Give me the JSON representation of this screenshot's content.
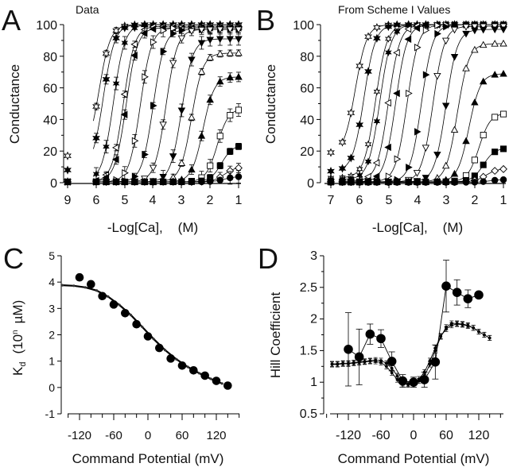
{
  "chart_data": [
    {
      "panel": "A",
      "type": "line",
      "title": "Data",
      "xlabel": "-Log[Ca],    (M)",
      "ylabel": "Conductance",
      "xticks": [
        "9",
        "6",
        "5",
        "4",
        "3",
        "2",
        "1"
      ],
      "yticks": [
        "0",
        "20",
        "40",
        "60",
        "80",
        "100"
      ],
      "ylim": [
        0,
        100
      ],
      "x_axis_note": "x axis reversed; broken between 9 and 6",
      "legend": "none",
      "series": [
        {
          "name": "s1",
          "marker": "open-star",
          "plateau_low": 17,
          "plateau_high": 100,
          "half": 5.9
        },
        {
          "name": "s2",
          "marker": "filled-star",
          "plateau_low": 8,
          "plateau_high": 100,
          "half": 5.75
        },
        {
          "name": "s3",
          "marker": "filled-star-small",
          "plateau_low": 1,
          "plateau_high": 100,
          "half": 5.4
        },
        {
          "name": "s4",
          "marker": "open-left-triangle",
          "plateau_low": 0.5,
          "plateau_high": 99,
          "half": 5.05
        },
        {
          "name": "s5",
          "marker": "filled-left-triangle",
          "plateau_low": 0.5,
          "plateau_high": 98,
          "half": 4.95
        },
        {
          "name": "s6",
          "marker": "open-right-triangle",
          "plateau_low": 0.5,
          "plateau_high": 98,
          "half": 4.45
        },
        {
          "name": "s7",
          "marker": "filled-right-triangle",
          "plateau_low": 0.5,
          "plateau_high": 97,
          "half": 4.0
        },
        {
          "name": "s8",
          "marker": "open-down-triangle",
          "plateau_low": 0.5,
          "plateau_high": 97,
          "half": 3.55
        },
        {
          "name": "s9",
          "marker": "filled-down-triangle",
          "plateau_low": 0.5,
          "plateau_high": 91,
          "half": 3.0
        },
        {
          "name": "s10",
          "marker": "open-up-triangle",
          "plateau_low": 0.5,
          "plateau_high": 82,
          "half": 2.65
        },
        {
          "name": "s11",
          "marker": "filled-up-triangle",
          "plateau_low": 0.5,
          "plateau_high": 67,
          "half": 2.25
        },
        {
          "name": "s12",
          "marker": "open-square",
          "plateau_low": 0.5,
          "plateau_high": 47,
          "half": 1.75
        },
        {
          "name": "s13",
          "marker": "filled-square",
          "plateau_low": 0.5,
          "plateau_high": 24,
          "half": 1.6
        },
        {
          "name": "s14",
          "marker": "open-diamond",
          "plateau_low": 0.5,
          "plateau_high": 10,
          "half": 1.5
        },
        {
          "name": "s15",
          "marker": "filled-circle",
          "plateau_low": 0.5,
          "plateau_high": 4,
          "half": 1.5
        }
      ]
    },
    {
      "panel": "B",
      "type": "line",
      "title": "From Scheme I Values",
      "xlabel": "-Log[Ca],    (M)",
      "ylabel": "Conductance",
      "xticks": [
        "7",
        "6",
        "5",
        "4",
        "3",
        "2",
        "1"
      ],
      "yticks": [
        "0",
        "20",
        "40",
        "60",
        "80",
        "100"
      ],
      "ylim": [
        0,
        100
      ],
      "xlim": [
        7,
        1
      ],
      "legend": "none",
      "series": [
        {
          "name": "s1",
          "marker": "open-star",
          "plateau_low": 18,
          "plateau_high": 100,
          "half": 6.15
        },
        {
          "name": "s2",
          "marker": "filled-star",
          "plateau_low": 7,
          "plateau_high": 100,
          "half": 5.85
        },
        {
          "name": "s3",
          "marker": "open-star-small",
          "plateau_low": 3,
          "plateau_high": 100,
          "half": 5.45
        },
        {
          "name": "s4",
          "marker": "filled-star-small",
          "plateau_low": 2,
          "plateau_high": 100,
          "half": 5.3
        },
        {
          "name": "s5",
          "marker": "open-left-triangle",
          "plateau_low": 1,
          "plateau_high": 100,
          "half": 5.0
        },
        {
          "name": "s6",
          "marker": "filled-left-triangle",
          "plateau_low": 0.5,
          "plateau_high": 100,
          "half": 4.75
        },
        {
          "name": "s7",
          "marker": "open-right-triangle",
          "plateau_low": 0.5,
          "plateau_high": 100,
          "half": 4.35
        },
        {
          "name": "s8",
          "marker": "filled-right-triangle",
          "plateau_low": 0.5,
          "plateau_high": 100,
          "half": 3.85
        },
        {
          "name": "s9",
          "marker": "open-down-triangle",
          "plateau_low": 0.5,
          "plateau_high": 99,
          "half": 3.45
        },
        {
          "name": "s10",
          "marker": "filled-down-triangle",
          "plateau_low": 0.5,
          "plateau_high": 97,
          "half": 3.0
        },
        {
          "name": "s11",
          "marker": "open-up-triangle",
          "plateau_low": 0.5,
          "plateau_high": 88,
          "half": 2.6
        },
        {
          "name": "s12",
          "marker": "filled-up-triangle",
          "plateau_low": 0.5,
          "plateau_high": 69,
          "half": 2.2
        },
        {
          "name": "s13",
          "marker": "open-square",
          "plateau_low": 0.5,
          "plateau_high": 44,
          "half": 1.85
        },
        {
          "name": "s14",
          "marker": "filled-square",
          "plateau_low": 0.5,
          "plateau_high": 22,
          "half": 1.7
        },
        {
          "name": "s15",
          "marker": "open-diamond",
          "plateau_low": 0.5,
          "plateau_high": 9,
          "half": 1.6
        },
        {
          "name": "s16",
          "marker": "filled-circle",
          "plateau_low": 0.2,
          "plateau_high": 2,
          "half": 1.5
        }
      ]
    },
    {
      "panel": "C",
      "type": "scatter",
      "xlabel": "Command Potential (mV)",
      "ylabel": "K_d  (10^n  µM)",
      "ylabel_main": "K",
      "ylabel_sub": "d",
      "ylabel_rest": "(10",
      "ylabel_sup": "n",
      "ylabel_unit": "µM)",
      "xticks": [
        "-120",
        "-60",
        "0",
        "60",
        "120"
      ],
      "yticks": [
        "-1",
        "0",
        "1",
        "2",
        "3",
        "4",
        "5"
      ],
      "xlim": [
        -150,
        160
      ],
      "ylim": [
        -1,
        5
      ],
      "legend": "none",
      "series": [
        {
          "name": "data",
          "marker": "filled-circle",
          "x": [
            -120,
            -100,
            -80,
            -60,
            -40,
            -20,
            0,
            20,
            40,
            60,
            80,
            100,
            120,
            140
          ],
          "y": [
            4.18,
            3.92,
            3.47,
            3.15,
            2.82,
            2.4,
            1.94,
            1.5,
            1.1,
            0.83,
            0.65,
            0.45,
            0.25,
            0.07
          ]
        },
        {
          "name": "fit",
          "marker": "small-dots",
          "x": [
            -150,
            -130,
            -110,
            -90,
            -70,
            -50,
            -30,
            -10,
            10,
            30,
            50,
            70,
            90,
            110,
            130
          ],
          "y": [
            3.88,
            3.86,
            3.8,
            3.68,
            3.45,
            3.13,
            2.75,
            2.3,
            1.84,
            1.42,
            1.07,
            0.78,
            0.54,
            0.33,
            0.15
          ]
        }
      ]
    },
    {
      "panel": "D",
      "type": "line",
      "xlabel": "Command Potential (mV)",
      "ylabel": "Hill Coefficient",
      "xticks": [
        "-120",
        "-60",
        "0",
        "60",
        "120"
      ],
      "yticks": [
        "0.5",
        "1",
        "1.5",
        "2",
        "2.5",
        "3"
      ],
      "xlim": [
        -155,
        160
      ],
      "ylim": [
        0.5,
        3
      ],
      "legend": "none",
      "series": [
        {
          "name": "data",
          "marker": "filled-circle",
          "x": [
            -120,
            -100,
            -80,
            -60,
            -40,
            -20,
            0,
            20,
            40,
            60,
            80,
            100,
            120
          ],
          "y": [
            1.52,
            1.4,
            1.76,
            1.69,
            1.33,
            1.02,
            1.0,
            1.04,
            1.32,
            2.52,
            2.42,
            2.32,
            2.38
          ],
          "err": [
            0.58,
            0.44,
            0.16,
            0.14,
            0.15,
            0.1,
            0.08,
            0.12,
            0.27,
            0.41,
            0.2,
            0.14,
            0
          ]
        },
        {
          "name": "fit1",
          "marker": "small-dots",
          "x": [
            -150,
            -140,
            -130,
            -120,
            -110,
            -100,
            -90,
            -80,
            -70,
            -60,
            -50,
            -40,
            -30,
            -20,
            -10,
            0,
            10,
            20,
            30,
            40,
            50,
            60,
            70,
            80,
            90,
            100,
            110,
            120,
            130,
            140
          ],
          "y": [
            1.29,
            1.29,
            1.3,
            1.3,
            1.31,
            1.32,
            1.33,
            1.34,
            1.35,
            1.34,
            1.3,
            1.22,
            1.1,
            1.0,
            0.97,
            0.98,
            1.02,
            1.1,
            1.28,
            1.5,
            1.72,
            1.87,
            1.93,
            1.93,
            1.92,
            1.9,
            1.86,
            1.8,
            1.75,
            1.7
          ],
          "err": 0.04
        },
        {
          "name": "fit2",
          "marker": "small-dots",
          "x": [
            -150,
            -140,
            -130,
            -120,
            -110,
            -100,
            -90,
            -80,
            -70,
            -60,
            -50,
            -40,
            -30,
            -20,
            -10,
            0,
            10,
            20,
            30,
            40,
            50,
            60,
            70,
            80,
            90,
            100,
            110,
            120,
            130,
            140
          ],
          "y": [
            1.28,
            1.28,
            1.29,
            1.29,
            1.3,
            1.31,
            1.32,
            1.33,
            1.33,
            1.31,
            1.25,
            1.15,
            1.04,
            0.98,
            0.96,
            0.99,
            1.05,
            1.16,
            1.34,
            1.54,
            1.73,
            1.84,
            1.9,
            1.92,
            1.91,
            1.89,
            1.86,
            1.8,
            1.75,
            1.7
          ],
          "err": 0.04
        }
      ]
    }
  ]
}
